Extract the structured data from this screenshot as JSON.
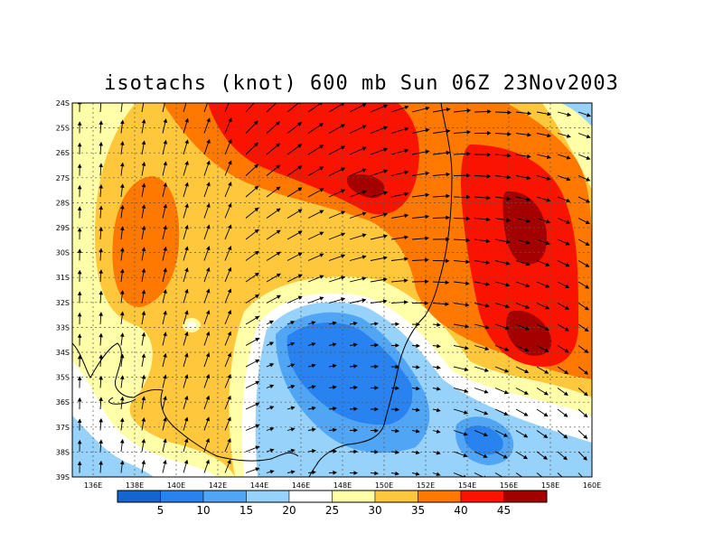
{
  "title": "isotachs (knot) 600 mb Sun 06Z 23Nov2003",
  "lat_labels": [
    "24S",
    "25S",
    "26S",
    "27S",
    "28S",
    "29S",
    "30S",
    "31S",
    "32S",
    "33S",
    "34S",
    "35S",
    "36S",
    "37S",
    "38S",
    "39S"
  ],
  "lon_labels": [
    "136E",
    "138E",
    "140E",
    "142E",
    "144E",
    "146E",
    "148E",
    "150E",
    "152E",
    "154E",
    "156E",
    "158E",
    "160E"
  ],
  "colorbar": {
    "colors": [
      "#1464d2",
      "#2882f0",
      "#50a5f5",
      "#96d2fa",
      "#ffffff",
      "#ffffaa",
      "#ffc83c",
      "#ff7800",
      "#fa1400",
      "#a50000"
    ],
    "labels": [
      "5",
      "10",
      "15",
      "20",
      "25",
      "30",
      "35",
      "40",
      "45"
    ]
  },
  "map": {
    "lon_range": [
      135,
      160
    ],
    "lat_range": [
      -39,
      -24
    ],
    "grid": true,
    "field": "wind speed (knot) with wind vectors"
  }
}
